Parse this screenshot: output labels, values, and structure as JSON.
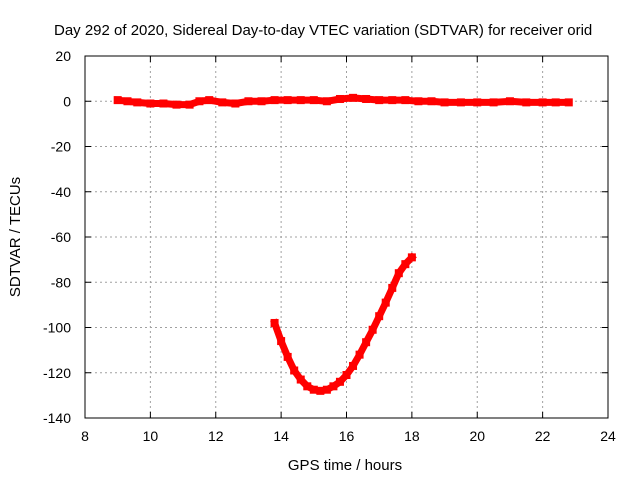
{
  "chart_data": {
    "type": "scatter",
    "title": "Day 292 of 2020, Sidereal Day-to-day VTEC variation (SDTVAR) for receiver orid",
    "xlabel": "GPS time / hours",
    "ylabel": "SDTVAR / TECUs",
    "xlim": [
      8,
      24
    ],
    "ylim": [
      -140,
      20
    ],
    "xticks": [
      8,
      10,
      12,
      14,
      16,
      18,
      20,
      22,
      24
    ],
    "yticks": [
      20,
      0,
      -20,
      -40,
      -60,
      -80,
      -100,
      -120,
      -140
    ],
    "grid": true,
    "series": [
      {
        "name": "SDTVAR track near zero",
        "color": "#ff0000",
        "x": [
          9.0,
          9.3,
          9.6,
          10.0,
          10.4,
          10.8,
          11.2,
          11.5,
          11.8,
          12.2,
          12.6,
          13.0,
          13.4,
          13.8,
          14.2,
          14.6,
          15.0,
          15.4,
          15.8,
          16.2,
          16.6,
          17.0,
          17.4,
          17.8,
          18.2,
          18.6,
          19.0,
          19.5,
          20.0,
          20.5,
          21.0,
          21.5,
          22.0,
          22.4,
          22.8
        ],
        "y": [
          0.5,
          0.0,
          -0.5,
          -1.0,
          -1.0,
          -1.5,
          -1.5,
          0.0,
          0.5,
          -0.5,
          -1.0,
          0.0,
          0.0,
          0.5,
          0.5,
          0.5,
          0.5,
          0.0,
          1.0,
          1.5,
          1.0,
          0.5,
          0.5,
          0.5,
          0.0,
          0.0,
          -0.5,
          -0.5,
          -0.5,
          -0.5,
          0.0,
          -0.5,
          -0.5,
          -0.5,
          -0.5
        ]
      },
      {
        "name": "SDTVAR dip segment",
        "color": "#ff0000",
        "x": [
          13.8,
          14.0,
          14.2,
          14.4,
          14.6,
          14.8,
          15.0,
          15.2,
          15.4,
          15.6,
          15.8,
          16.0,
          16.2,
          16.4,
          16.6,
          16.8,
          17.0,
          17.2,
          17.4,
          17.6,
          17.8,
          18.0
        ],
        "y": [
          -98,
          -106,
          -113,
          -119,
          -123,
          -126,
          -127.5,
          -128,
          -127.5,
          -126,
          -124,
          -121,
          -117,
          -112,
          -106.5,
          -101,
          -95,
          -89,
          -82.5,
          -76,
          -72,
          -69
        ]
      }
    ]
  }
}
